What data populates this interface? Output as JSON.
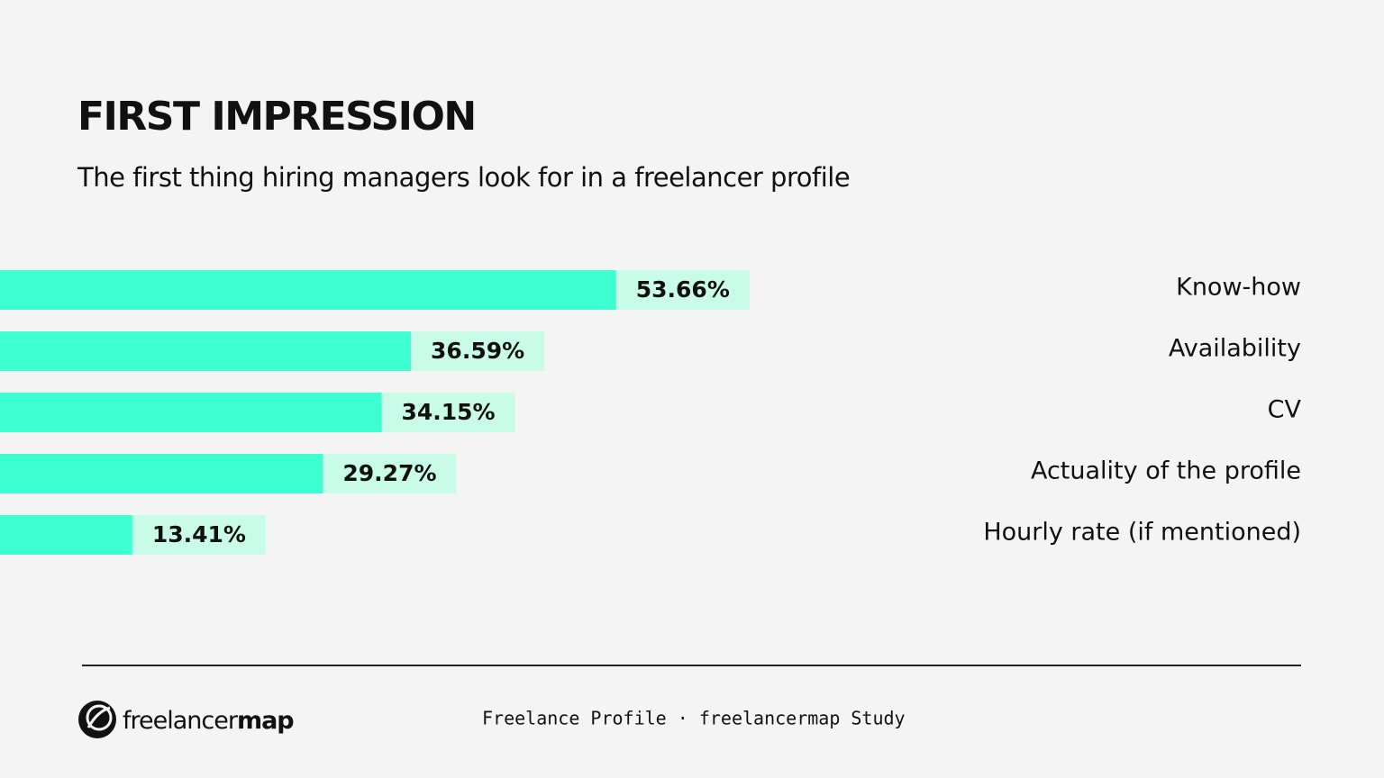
{
  "chart_data": {
    "type": "bar",
    "orientation": "horizontal",
    "title": "FIRST IMPRESSION",
    "subtitle": "The first thing hiring managers look for in a freelancer profile",
    "categories": [
      "Know-how",
      "Availability",
      "CV",
      "Actuality of the profile",
      "Hourly rate (if mentioned)"
    ],
    "values": [
      53.66,
      36.59,
      34.15,
      29.27,
      13.41
    ],
    "value_labels": [
      "53.66%",
      "36.59%",
      "34.15%",
      "29.27%",
      "13.41%"
    ],
    "color": "#3effd0"
  },
  "footer": {
    "logo_light": "freelancer",
    "logo_bold": "map",
    "caption": "Freelance Profile · freelancermap Study"
  }
}
